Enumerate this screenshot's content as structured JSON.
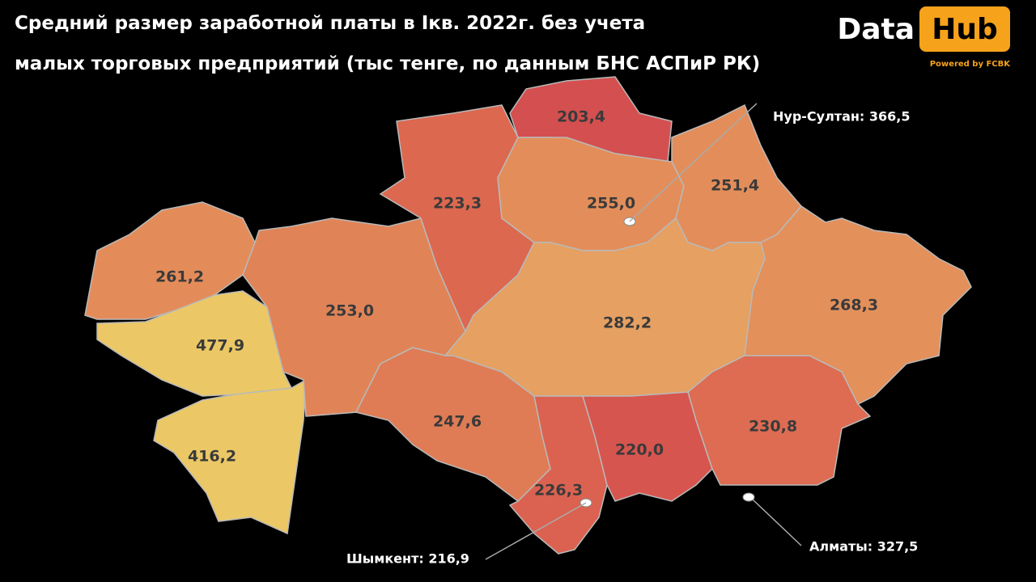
{
  "title": [
    "Средний размер заработной платы в Iкв. 2022г. без учета",
    "малых торговых предприятий (тыс тенге, по данным БНС АСПиР РК)"
  ],
  "logo": {
    "text1": "Data",
    "text2": "Hub",
    "tagline": "Powered by FCBK"
  },
  "regions": [
    {
      "label": "261,2",
      "color": "#e38c5a"
    },
    {
      "label": "477,9",
      "color": "#ebc865"
    },
    {
      "label": "416,2",
      "color": "#ebc865"
    },
    {
      "label": "253,0",
      "color": "#e08458"
    },
    {
      "label": "223,3",
      "color": "#dc6850"
    },
    {
      "label": "203,4",
      "color": "#d44f4f"
    },
    {
      "label": "255,0",
      "color": "#e38e5a"
    },
    {
      "label": "251,4",
      "color": "#e38e5a"
    },
    {
      "label": "282,2",
      "color": "#e5a062"
    },
    {
      "label": "268,3",
      "color": "#e3905b"
    },
    {
      "label": "247,6",
      "color": "#df7c55"
    },
    {
      "label": "226,3",
      "color": "#db6250"
    },
    {
      "label": "220,0",
      "color": "#d7554f"
    },
    {
      "label": "230,8",
      "color": "#dd6c52"
    }
  ],
  "cities": [
    {
      "label": "Нур-Султан: 366,5"
    },
    {
      "label": "Шымкент: 216,9"
    },
    {
      "label": "Алматы: 327,5"
    }
  ]
}
